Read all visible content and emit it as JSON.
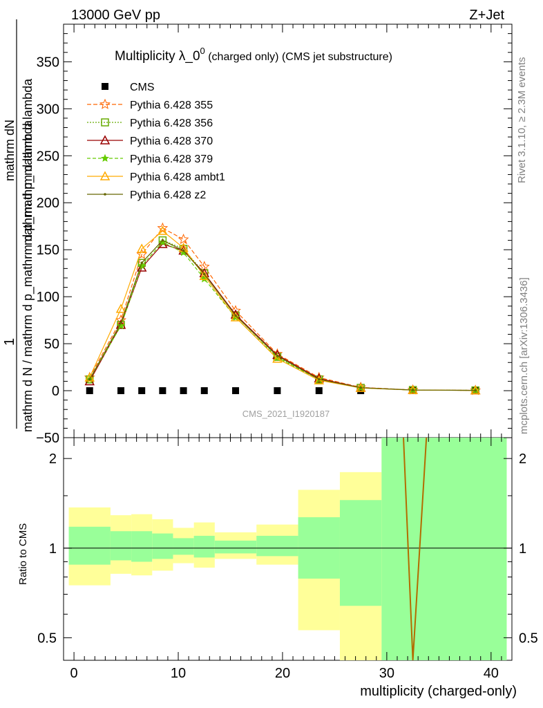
{
  "header": {
    "left": "13000 GeV pp",
    "right": "Z+Jet"
  },
  "side_labels": {
    "rivet": "Rivet 3.1.10, ≥ 2.3M events",
    "mcplots": "mcplots.cern.ch [arXiv:1306.3436]"
  },
  "chart_data": [
    {
      "type": "line",
      "title": "Multiplicity λ_0⁰ (charged only) (CMS jet substructure)",
      "title_main": "Multiplicity λ_0",
      "title_sup": "0",
      "title_sub": " (charged only) (CMS jet substructure)",
      "watermark": "CMS_2021_I1920187",
      "ylabel_top": "1",
      "ylabel_top2": "mathrm dN",
      "ylabel_num": "mathrm d p_mathrm d lambda",
      "ylabel_den": "mathrm d N / mathrm d p_mathrm d p_mathrm d lambda",
      "xlim": [
        -1,
        42
      ],
      "ylim": [
        -50,
        390
      ],
      "yticks": [
        -50,
        0,
        50,
        100,
        150,
        200,
        250,
        300,
        350
      ],
      "ytick_labels": [
        "−50",
        "0",
        "50",
        "100",
        "150",
        "200",
        "250",
        "300",
        "350"
      ],
      "x": [
        1.5,
        4.5,
        6.5,
        8.5,
        10.5,
        12.5,
        15.5,
        19.5,
        23.5,
        27.5,
        32.5,
        38.5
      ],
      "series": [
        {
          "name": "CMS",
          "color": "#000000",
          "marker": "square",
          "dash": "none",
          "values": [
            0,
            0,
            0,
            0,
            0,
            0,
            0,
            0,
            0,
            0,
            0,
            0
          ]
        },
        {
          "name": "Pythia 6.428 355",
          "color": "#ff6600",
          "marker": "star",
          "dash": "6,3",
          "values": [
            14,
            75,
            145,
            173,
            161,
            132,
            85,
            39,
            14,
            3.5,
            0.8,
            0.3
          ]
        },
        {
          "name": "Pythia 6.428 356",
          "color": "#66aa00",
          "marker": "square-open",
          "dash": "2,2",
          "values": [
            12,
            70,
            136,
            160,
            151,
            125,
            80,
            36,
            12,
            3.0,
            0.7,
            0.3
          ]
        },
        {
          "name": "Pythia 6.428 370",
          "color": "#990000",
          "marker": "triangle-open",
          "dash": "none",
          "values": [
            10,
            70,
            131,
            156,
            149,
            125,
            81,
            38,
            13,
            3.2,
            0.7,
            0.3
          ]
        },
        {
          "name": "Pythia 6.428 379",
          "color": "#66cc00",
          "marker": "star-small",
          "dash": "5,3",
          "values": [
            12,
            69,
            133,
            158,
            147,
            119,
            78,
            35,
            12,
            3.0,
            0.7,
            0.3
          ]
        },
        {
          "name": "Pythia 6.428 ambt1",
          "color": "#ffaa00",
          "marker": "triangle-open",
          "dash": "none",
          "values": [
            14,
            87,
            151,
            170,
            152,
            122,
            78,
            34,
            11,
            2.9,
            0.6,
            0.3
          ]
        },
        {
          "name": "Pythia 6.428 z2",
          "color": "#666600",
          "marker": "dot",
          "dash": "none",
          "values": [
            12,
            72,
            136,
            160,
            149,
            124,
            80,
            37,
            12,
            3.1,
            0.7,
            0.3
          ]
        }
      ]
    },
    {
      "type": "area",
      "ylabel": "Ratio to CMS",
      "xlabel": "multiplicity (charged-only)",
      "xlim": [
        -1,
        42
      ],
      "ylim": [
        0.42,
        2.35
      ],
      "yscale": "log",
      "yticks": [
        0.5,
        1,
        2
      ],
      "ytick_labels": [
        "0.5",
        "1",
        "2"
      ],
      "xticks": [
        0,
        10,
        20,
        30,
        40
      ],
      "xtick_labels": [
        "0",
        "10",
        "20",
        "30",
        "40"
      ],
      "bins": [
        {
          "x0": -0.5,
          "x1": 3.5,
          "y_lo": 0.75,
          "y_hi": 1.37,
          "g_lo": 0.88,
          "g_hi": 1.18
        },
        {
          "x0": 3.5,
          "x1": 5.5,
          "y_lo": 0.82,
          "y_hi": 1.29,
          "g_lo": 0.91,
          "g_hi": 1.14
        },
        {
          "x0": 5.5,
          "x1": 7.5,
          "y_lo": 0.81,
          "y_hi": 1.3,
          "g_lo": 0.9,
          "g_hi": 1.14
        },
        {
          "x0": 7.5,
          "x1": 9.5,
          "y_lo": 0.84,
          "y_hi": 1.25,
          "g_lo": 0.92,
          "g_hi": 1.12
        },
        {
          "x0": 9.5,
          "x1": 11.5,
          "y_lo": 0.89,
          "y_hi": 1.17,
          "g_lo": 0.95,
          "g_hi": 1.08
        },
        {
          "x0": 11.5,
          "x1": 13.5,
          "y_lo": 0.86,
          "y_hi": 1.22,
          "g_lo": 0.93,
          "g_hi": 1.1
        },
        {
          "x0": 13.5,
          "x1": 17.5,
          "y_lo": 0.92,
          "y_hi": 1.13,
          "g_lo": 0.96,
          "g_hi": 1.06
        },
        {
          "x0": 17.5,
          "x1": 21.5,
          "y_lo": 0.88,
          "y_hi": 1.2,
          "g_lo": 0.94,
          "g_hi": 1.1
        },
        {
          "x0": 21.5,
          "x1": 25.5,
          "y_lo": 0.53,
          "y_hi": 1.57,
          "g_lo": 0.79,
          "g_hi": 1.27
        },
        {
          "x0": 25.5,
          "x1": 29.5,
          "y_lo": 0.42,
          "y_hi": 1.8,
          "g_lo": 0.64,
          "g_hi": 1.45
        },
        {
          "x0": 29.5,
          "x1": 41.5,
          "y_lo": 0.42,
          "y_hi": 2.35,
          "g_lo": 0.42,
          "g_hi": 2.35
        }
      ],
      "ratio_line": {
        "x": [
          31.6,
          32.5,
          33.8
        ],
        "y": [
          2.35,
          0.42,
          2.35
        ],
        "color": "#b36b00"
      }
    }
  ],
  "colors": {
    "band_yellow": "#ffff99",
    "band_green": "#99ff99",
    "side_text": "#808080",
    "watermark": "#a0a0a0"
  }
}
